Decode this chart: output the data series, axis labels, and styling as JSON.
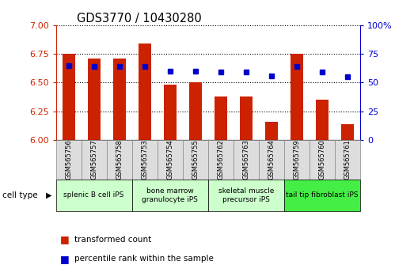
{
  "title": "GDS3770 / 10430280",
  "samples": [
    "GSM565756",
    "GSM565757",
    "GSM565758",
    "GSM565753",
    "GSM565754",
    "GSM565755",
    "GSM565762",
    "GSM565763",
    "GSM565764",
    "GSM565759",
    "GSM565760",
    "GSM565761"
  ],
  "red_values": [
    6.75,
    6.71,
    6.71,
    6.84,
    6.48,
    6.5,
    6.38,
    6.38,
    6.16,
    6.75,
    6.35,
    6.14
  ],
  "blue_values_pct": [
    65,
    64,
    64,
    64,
    60,
    60,
    59,
    59,
    56,
    64,
    59,
    55
  ],
  "ylim_left": [
    6.0,
    7.0
  ],
  "ylim_right": [
    0,
    100
  ],
  "yticks_left": [
    6.0,
    6.25,
    6.5,
    6.75,
    7.0
  ],
  "yticks_right": [
    0,
    25,
    50,
    75,
    100
  ],
  "cell_type_groups": [
    {
      "label": "splenic B cell iPS",
      "start": 0,
      "end": 3,
      "color": "#ccffcc"
    },
    {
      "label": "bone marrow\ngranulocyte iPS",
      "start": 3,
      "end": 6,
      "color": "#ccffcc"
    },
    {
      "label": "skeletal muscle\nprecursor iPS",
      "start": 6,
      "end": 9,
      "color": "#ccffcc"
    },
    {
      "label": "tail tip fibroblast iPS",
      "start": 9,
      "end": 12,
      "color": "#44ee44"
    }
  ],
  "bar_color": "#cc2200",
  "dot_color": "#0000cc",
  "bar_base": 6.0,
  "left_axis_color": "#cc2200",
  "right_axis_color": "#0000cc",
  "legend_items": [
    {
      "label": "transformed count",
      "color": "#cc2200"
    },
    {
      "label": "percentile rank within the sample",
      "color": "#0000cc"
    }
  ]
}
